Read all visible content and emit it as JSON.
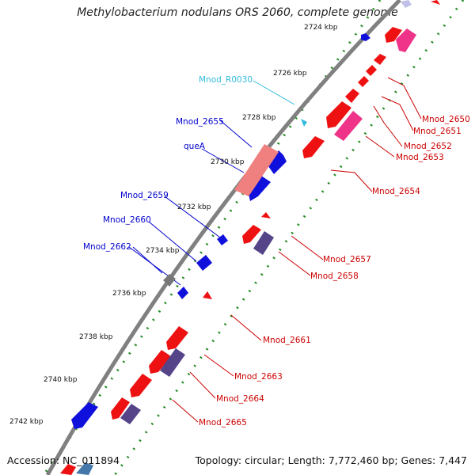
{
  "title": "Methylobacterium nodulans ORS 2060, complete genome",
  "accession": "Accession: NC_011894",
  "summary": "Topology: circular; Length: 7,772,460 bp; Genes: 7,447",
  "colors": {
    "backbone": "#808080",
    "label_forward": "#0000cc",
    "label_reverse": "#cc0000",
    "label_rna": "#33bbdd",
    "tick_dots": "#228b22"
  },
  "ticks": [
    "2724 kbp",
    "2726 kbp",
    "2728 kbp",
    "2730 kbp",
    "2732 kbp",
    "2734 kbp",
    "2736 kbp",
    "2738 kbp",
    "2740 kbp",
    "2742 kbp"
  ],
  "labels_left": [
    "Mnod_R0030",
    "Mnod_2655",
    "queA",
    "Mnod_2659",
    "Mnod_2660",
    "Mnod_2662"
  ],
  "labels_right": [
    "Mnod_2650",
    "Mnod_2651",
    "Mnod_2652",
    "Mnod_2653",
    "Mnod_2654",
    "Mnod_2657",
    "Mnod_2658",
    "Mnod_2661",
    "Mnod_2663",
    "Mnod_2664",
    "Mnod_2665"
  ]
}
